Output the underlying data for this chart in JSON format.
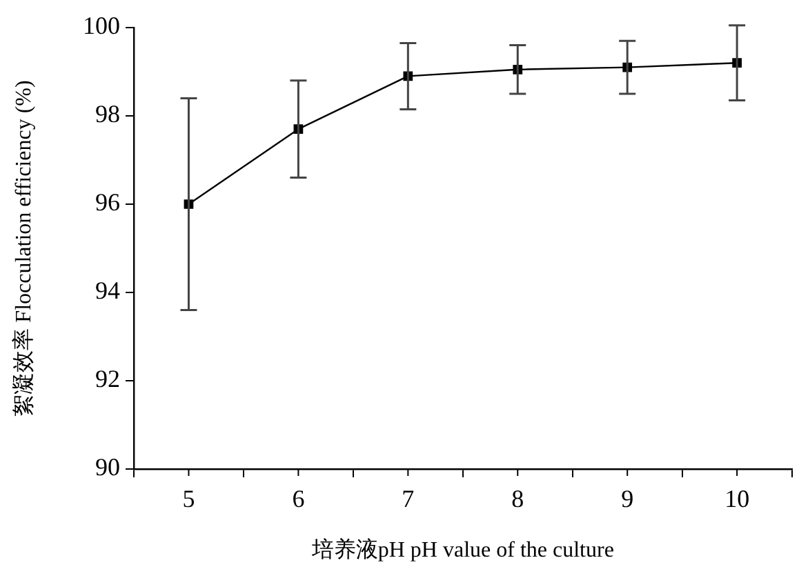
{
  "chart_data": {
    "type": "line",
    "xlabel": "培养液pH pH value of the culture",
    "ylabel": "絮凝效率 Flocculation efficiency (%)",
    "categories": [
      "5",
      "6",
      "7",
      "8",
      "9",
      "10"
    ],
    "series": [
      {
        "color": "#000000",
        "values": [
          96.0,
          97.7,
          98.9,
          99.05,
          99.1,
          99.2
        ],
        "errors": [
          2.4,
          1.1,
          0.75,
          0.55,
          0.6,
          0.85
        ]
      }
    ],
    "ylim": [
      90,
      100
    ],
    "yticks": [
      90,
      92,
      94,
      96,
      98,
      100
    ],
    "grid": false,
    "legend": false,
    "marker": "square",
    "line_style": "solid"
  }
}
